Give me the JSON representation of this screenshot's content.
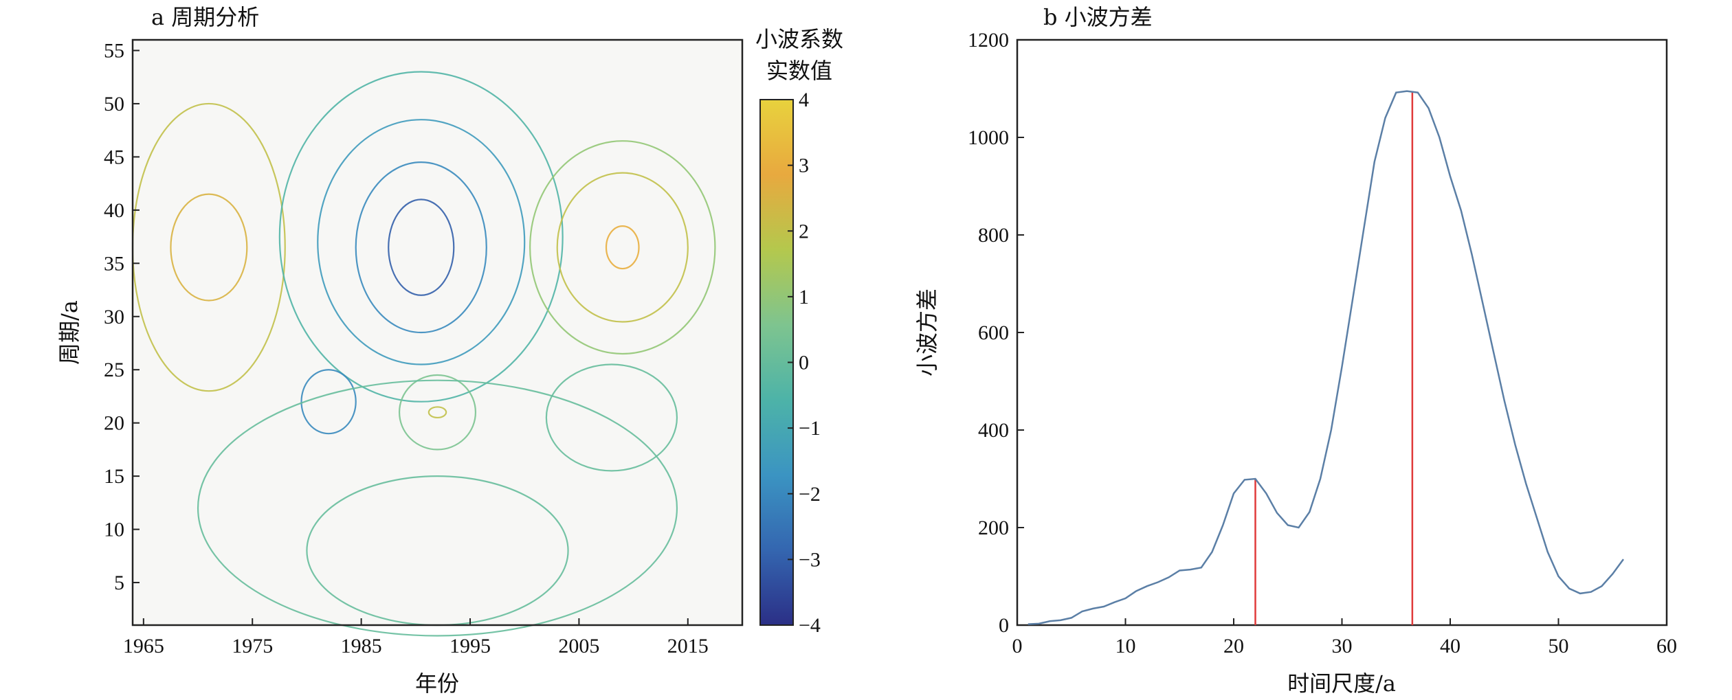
{
  "chart_data": [
    {
      "type": "heatmap",
      "title": "a 周期分析",
      "xlabel": "年份",
      "ylabel": "周期/a",
      "xlim": [
        1964,
        2020
      ],
      "ylim": [
        1,
        56
      ],
      "x_ticks": [
        1965,
        1975,
        1985,
        1995,
        2005,
        2015
      ],
      "y_ticks": [
        5,
        10,
        15,
        20,
        25,
        30,
        35,
        40,
        45,
        50,
        55
      ],
      "colorbar": {
        "title_line1": "小波系数",
        "title_line2": "实数值",
        "range": [
          -4,
          4
        ],
        "ticks": [
          "4",
          "3",
          "2",
          "1",
          "0",
          "−1",
          "−2",
          "−3",
          "−4"
        ],
        "tick_values": [
          4,
          3,
          2,
          1,
          0,
          -1,
          -2,
          -3,
          -4
        ],
        "colors": [
          "#2b2f86",
          "#3466b0",
          "#3b94c2",
          "#4db3a8",
          "#7ec48f",
          "#b4c84d",
          "#e8a93f",
          "#e8d23d"
        ]
      },
      "contours": [
        {
          "cx": 1971,
          "cy": 36.5,
          "rx": 3.5,
          "ry": 5,
          "value": 2.5
        },
        {
          "cx": 1971,
          "cy": 36.5,
          "rx": 7,
          "ry": 13.5,
          "value": 2
        },
        {
          "cx": 1990.5,
          "cy": 36.5,
          "rx": 3,
          "ry": 4.5,
          "value": -3
        },
        {
          "cx": 1990.5,
          "cy": 36.5,
          "rx": 6,
          "ry": 8,
          "value": -2
        },
        {
          "cx": 1990.5,
          "cy": 37,
          "rx": 9.5,
          "ry": 11.5,
          "value": -1.5
        },
        {
          "cx": 1990.5,
          "cy": 37.5,
          "rx": 13,
          "ry": 15.5,
          "value": -0.5
        },
        {
          "cx": 2009,
          "cy": 36.5,
          "rx": 1.5,
          "ry": 2,
          "value": 3
        },
        {
          "cx": 2009,
          "cy": 36.5,
          "rx": 6,
          "ry": 7,
          "value": 2
        },
        {
          "cx": 2009,
          "cy": 36.5,
          "rx": 8.5,
          "ry": 10,
          "value": 1
        },
        {
          "cx": 1982,
          "cy": 22,
          "rx": 2.5,
          "ry": 3,
          "value": -2
        },
        {
          "cx": 1992,
          "cy": 21,
          "rx": 0.8,
          "ry": 0.5,
          "value": 2
        },
        {
          "cx": 1992,
          "cy": 21,
          "rx": 3.5,
          "ry": 3.5,
          "value": 0.5
        },
        {
          "cx": 2008,
          "cy": 20.5,
          "rx": 6,
          "ry": 5,
          "value": 0
        },
        {
          "cx": 1992,
          "cy": 8,
          "rx": 12,
          "ry": 7,
          "value": 0
        },
        {
          "cx": 1992,
          "cy": 12,
          "rx": 22,
          "ry": 12,
          "value": 0
        }
      ]
    },
    {
      "type": "line",
      "title": "b 小波方差",
      "xlabel": "时间尺度/a",
      "ylabel": "小波方差",
      "xlim": [
        0,
        60
      ],
      "ylim": [
        0,
        1200
      ],
      "x_ticks": [
        0,
        10,
        20,
        30,
        40,
        50,
        60
      ],
      "y_ticks": [
        0,
        200,
        400,
        600,
        800,
        1000,
        1200
      ],
      "x": [
        1,
        2,
        3,
        4,
        5,
        6,
        7,
        8,
        9,
        10,
        11,
        12,
        13,
        14,
        15,
        16,
        17,
        18,
        19,
        20,
        21,
        22,
        23,
        24,
        25,
        26,
        27,
        28,
        29,
        30,
        31,
        32,
        33,
        34,
        35,
        36,
        37,
        38,
        39,
        40,
        41,
        42,
        43,
        44,
        45,
        46,
        47,
        48,
        49,
        50,
        51,
        52,
        53,
        54,
        55,
        56
      ],
      "series": [
        {
          "values": [
            2,
            3,
            8,
            10,
            15,
            28,
            34,
            38,
            47,
            55,
            70,
            80,
            88,
            98,
            112,
            114,
            118,
            150,
            205,
            270,
            298,
            300,
            270,
            230,
            205,
            200,
            232,
            300,
            400,
            530,
            670,
            810,
            950,
            1040,
            1092,
            1095,
            1092,
            1060,
            1000,
            920,
            850,
            760,
            660,
            560,
            460,
            370,
            290,
            220,
            150,
            100,
            75,
            65,
            68,
            80,
            105,
            135
          ],
          "color": "#5b7fa6"
        }
      ],
      "peaks": [
        {
          "x": 22,
          "y": 300
        },
        {
          "x": 36.5,
          "y": 1095
        }
      ],
      "peak_line_color": "#e03a3a"
    }
  ]
}
